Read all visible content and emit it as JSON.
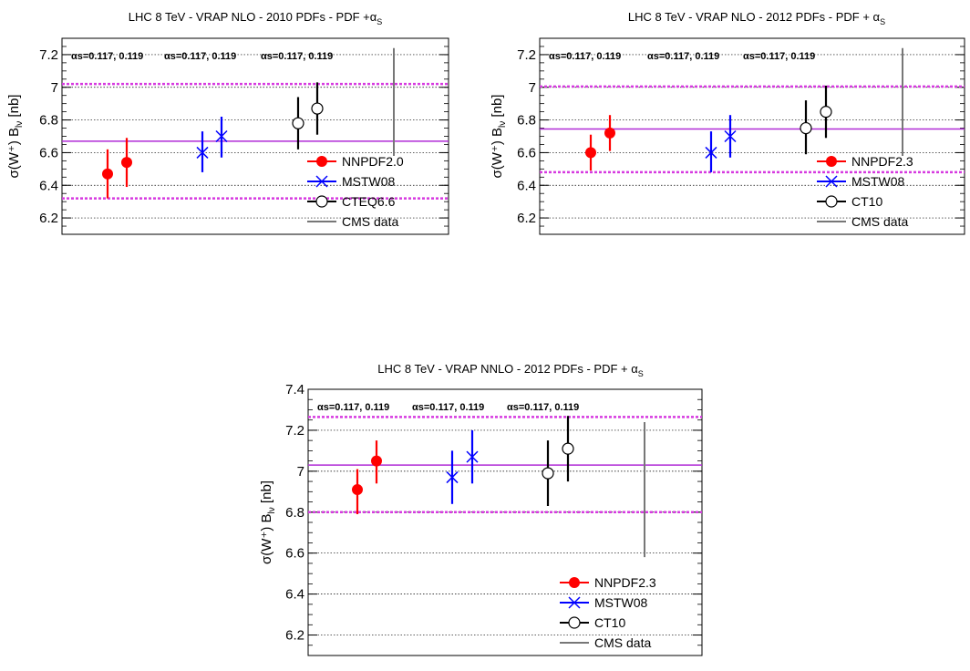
{
  "chart_data": [
    {
      "type": "scatter",
      "title": "LHC 8 TeV - VRAP NLO - 2010 PDFs - PDF +",
      "title_symbol": "α",
      "title_sub": "S",
      "ylabel": "σ(W⁺) B",
      "ylabel_sub": "lν",
      "ylabel_unit": " [nb]",
      "ylim": [
        6.1,
        7.3
      ],
      "yticks": [
        6.2,
        6.4,
        6.6,
        6.8,
        7,
        7.2
      ],
      "grid": true,
      "legend_position": "bottom-right",
      "annotations": [
        "αs=0.117,  0.119",
        "αs=0.117,  0.119",
        "αs=0.117,  0.119"
      ],
      "band": {
        "central": 6.67,
        "low": 6.32,
        "high": 7.02,
        "central_color": "#b02bd6",
        "edge_color": "#d63ae0"
      },
      "series": [
        {
          "name": "NNPDF2.0",
          "marker": "filled-circle",
          "color": "#ff0000",
          "points": [
            {
              "alphas": 0.117,
              "y": 6.47,
              "err_low": 6.32,
              "err_high": 6.62
            },
            {
              "alphas": 0.119,
              "y": 6.54,
              "err_low": 6.39,
              "err_high": 6.69
            }
          ]
        },
        {
          "name": "MSTW08",
          "marker": "cross",
          "color": "#0000ff",
          "points": [
            {
              "alphas": 0.117,
              "y": 6.6,
              "err_low": 6.48,
              "err_high": 6.73
            },
            {
              "alphas": 0.119,
              "y": 6.7,
              "err_low": 6.57,
              "err_high": 6.82
            }
          ]
        },
        {
          "name": "CTEQ6.6",
          "marker": "open-circle",
          "color": "#000000",
          "points": [
            {
              "alphas": 0.117,
              "y": 6.78,
              "err_low": 6.62,
              "err_high": 6.94
            },
            {
              "alphas": 0.119,
              "y": 6.87,
              "err_low": 6.71,
              "err_high": 7.03
            }
          ]
        },
        {
          "name": "CMS data",
          "marker": "line",
          "color": "#777777",
          "points": [
            {
              "y": 6.91,
              "err_low": 6.58,
              "err_high": 7.24
            }
          ]
        }
      ]
    },
    {
      "type": "scatter",
      "title": "LHC 8 TeV - VRAP NLO - 2012 PDFs - PDF + ",
      "title_symbol": "α",
      "title_sub": "S",
      "ylabel": "σ(W⁺) B",
      "ylabel_sub": "lν",
      "ylabel_unit": " [nb]",
      "ylim": [
        6.1,
        7.3
      ],
      "yticks": [
        6.2,
        6.4,
        6.6,
        6.8,
        7,
        7.2
      ],
      "grid": true,
      "legend_position": "bottom-right",
      "annotations": [
        "αs=0.117,  0.119",
        "αs=0.117,  0.119",
        "αs=0.117,  0.119"
      ],
      "band": {
        "central": 6.745,
        "low": 6.48,
        "high": 7.005,
        "central_color": "#b02bd6",
        "edge_color": "#d63ae0"
      },
      "series": [
        {
          "name": "NNPDF2.3",
          "marker": "filled-circle",
          "color": "#ff0000",
          "points": [
            {
              "alphas": 0.117,
              "y": 6.6,
              "err_low": 6.49,
              "err_high": 6.71
            },
            {
              "alphas": 0.119,
              "y": 6.72,
              "err_low": 6.61,
              "err_high": 6.83
            }
          ]
        },
        {
          "name": "MSTW08",
          "marker": "cross",
          "color": "#0000ff",
          "points": [
            {
              "alphas": 0.117,
              "y": 6.6,
              "err_low": 6.48,
              "err_high": 6.73
            },
            {
              "alphas": 0.119,
              "y": 6.7,
              "err_low": 6.57,
              "err_high": 6.83
            }
          ]
        },
        {
          "name": "CT10",
          "marker": "open-circle",
          "color": "#000000",
          "points": [
            {
              "alphas": 0.117,
              "y": 6.75,
              "err_low": 6.59,
              "err_high": 6.92
            },
            {
              "alphas": 0.119,
              "y": 6.85,
              "err_low": 6.69,
              "err_high": 7.01
            }
          ]
        },
        {
          "name": "CMS data",
          "marker": "line",
          "color": "#777777",
          "points": [
            {
              "y": 6.91,
              "err_low": 6.58,
              "err_high": 7.24
            }
          ]
        }
      ]
    },
    {
      "type": "scatter",
      "title": "LHC 8 TeV - VRAP NNLO - 2012 PDFs - PDF + ",
      "title_symbol": "α",
      "title_sub": "S",
      "ylabel": "σ(W⁺) B",
      "ylabel_sub": "lν",
      "ylabel_unit": " [nb]",
      "ylim": [
        6.1,
        7.4
      ],
      "yticks": [
        6.2,
        6.4,
        6.6,
        6.8,
        7,
        7.2,
        7.4
      ],
      "grid": true,
      "legend_position": "bottom-right",
      "annotations": [
        "αs=0.117,  0.119",
        "αs=0.117,  0.119",
        "αs=0.117,  0.119"
      ],
      "band": {
        "central": 7.03,
        "low": 6.8,
        "high": 7.265,
        "central_color": "#b02bd6",
        "edge_color": "#d63ae0"
      },
      "series": [
        {
          "name": "NNPDF2.3",
          "marker": "filled-circle",
          "color": "#ff0000",
          "points": [
            {
              "alphas": 0.117,
              "y": 6.91,
              "err_low": 6.79,
              "err_high": 7.01
            },
            {
              "alphas": 0.119,
              "y": 7.05,
              "err_low": 6.94,
              "err_high": 7.15
            }
          ]
        },
        {
          "name": "MSTW08",
          "marker": "cross",
          "color": "#0000ff",
          "points": [
            {
              "alphas": 0.117,
              "y": 6.97,
              "err_low": 6.84,
              "err_high": 7.1
            },
            {
              "alphas": 0.119,
              "y": 7.07,
              "err_low": 6.94,
              "err_high": 7.2
            }
          ]
        },
        {
          "name": "CT10",
          "marker": "open-circle",
          "color": "#000000",
          "points": [
            {
              "alphas": 0.117,
              "y": 6.99,
              "err_low": 6.83,
              "err_high": 7.15
            },
            {
              "alphas": 0.119,
              "y": 7.11,
              "err_low": 6.95,
              "err_high": 7.27
            }
          ]
        },
        {
          "name": "CMS data",
          "marker": "line",
          "color": "#777777",
          "points": [
            {
              "y": 6.91,
              "err_low": 6.58,
              "err_high": 7.24
            }
          ]
        }
      ]
    }
  ]
}
